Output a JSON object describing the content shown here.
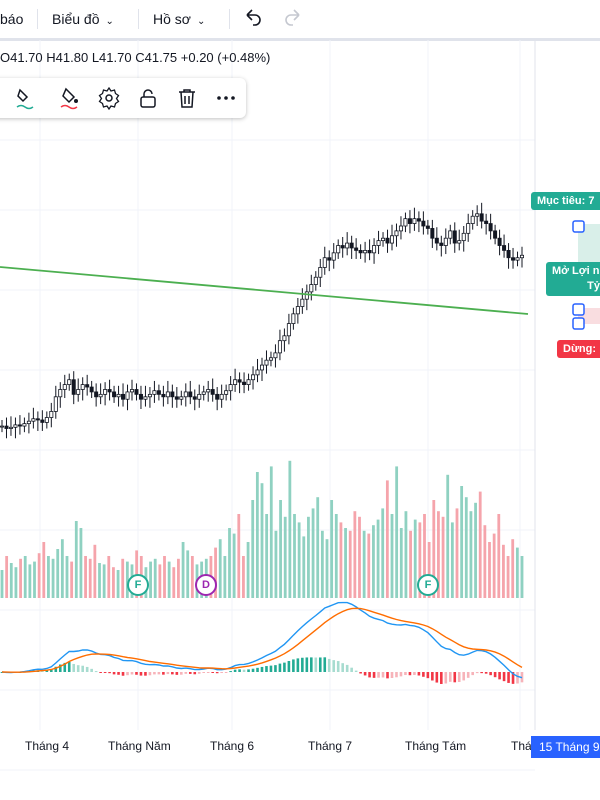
{
  "toolbar": {
    "left_label": "báo",
    "chart_menu": "Biểu đồ",
    "profile_menu": "Hồ sơ",
    "undo_icon": "undo-icon",
    "redo_icon": "redo-icon"
  },
  "ohlc": {
    "open": "O41.70",
    "high": "H41.80",
    "low": "L41.70",
    "close": "C41.75",
    "change": "+0.20 (+0.48%)"
  },
  "drawing_toolbar": {
    "icons": [
      "brush-icon",
      "fill-color-icon",
      "line-color-icon",
      "settings-icon",
      "lock-icon",
      "trash-icon",
      "more-icon"
    ]
  },
  "position_tags": {
    "target": "Mục tiêu: 7",
    "profit_line1": "Mở Lợi n",
    "profit_line2": "Tỷ",
    "stop": "Dừng:"
  },
  "events": [
    {
      "letter": "F",
      "color": "#22ab94"
    },
    {
      "letter": "D",
      "color": "#9c27b0"
    },
    {
      "letter": "F",
      "color": "#22ab94"
    }
  ],
  "date_badge": "15 Tháng 9",
  "colors": {
    "up": "#22ab94",
    "down": "#f23645",
    "trendline": "#4caf50",
    "macd": "#2196f3",
    "signal": "#ff6d00",
    "accent": "#2962ff"
  },
  "chart_data": {
    "type": "candlestick",
    "x_tick_labels": [
      "Tháng 4",
      "Tháng Năm",
      "Tháng 6",
      "Tháng 7",
      "Tháng Tám",
      "Thá"
    ],
    "last_bar": {
      "open": 41.7,
      "high": 41.8,
      "low": 41.7,
      "close": 41.75,
      "change": 0.2,
      "change_pct": 0.48
    },
    "price_shape": [
      0.36,
      0.34,
      0.35,
      0.37,
      0.36,
      0.38,
      0.4,
      0.42,
      0.41,
      0.39,
      0.43,
      0.48,
      0.6,
      0.66,
      0.7,
      0.74,
      0.62,
      0.66,
      0.7,
      0.68,
      0.64,
      0.6,
      0.62,
      0.66,
      0.64,
      0.6,
      0.62,
      0.58,
      0.64,
      0.66,
      0.62,
      0.58,
      0.6,
      0.62,
      0.65,
      0.62,
      0.6,
      0.64,
      0.6,
      0.58,
      0.6,
      0.64,
      0.6,
      0.58,
      0.62,
      0.64,
      0.66,
      0.62,
      0.58,
      0.62,
      0.65,
      0.7,
      0.74,
      0.72,
      0.7,
      0.74,
      0.78,
      0.82,
      0.86,
      0.9,
      0.92,
      0.96,
      1.06,
      1.1,
      1.2,
      1.28,
      1.34,
      1.4,
      1.46,
      1.52,
      1.58,
      1.66,
      1.74,
      1.72,
      1.78,
      1.84,
      1.82,
      1.86,
      1.82,
      1.8,
      1.78,
      1.8,
      1.78,
      1.84,
      1.88,
      1.9,
      1.86,
      1.92,
      1.96,
      2.0,
      2.06,
      2.02,
      2.06,
      2.04,
      2.0,
      1.98,
      1.9,
      1.86,
      1.84,
      1.9,
      1.96,
      1.86,
      1.88,
      1.94,
      2.02,
      2.08,
      2.1,
      2.04,
      2.02,
      1.96,
      1.9,
      1.84,
      1.8,
      1.74,
      1.72,
      1.74,
      1.76
    ],
    "volume_shape": [
      0.2,
      0.3,
      0.25,
      0.22,
      0.28,
      0.3,
      0.24,
      0.26,
      0.32,
      0.4,
      0.3,
      0.28,
      0.35,
      0.42,
      0.3,
      0.26,
      0.55,
      0.5,
      0.3,
      0.28,
      0.38,
      0.25,
      0.24,
      0.3,
      0.22,
      0.2,
      0.28,
      0.26,
      0.24,
      0.34,
      0.3,
      0.22,
      0.26,
      0.28,
      0.24,
      0.3,
      0.26,
      0.22,
      0.28,
      0.4,
      0.34,
      0.3,
      0.24,
      0.26,
      0.28,
      0.3,
      0.36,
      0.42,
      0.3,
      0.5,
      0.46,
      0.6,
      0.3,
      0.4,
      0.7,
      0.9,
      0.82,
      0.6,
      0.94,
      0.48,
      0.7,
      0.58,
      0.98,
      0.6,
      0.54,
      0.44,
      0.58,
      0.64,
      0.72,
      0.48,
      0.42,
      0.7,
      0.6,
      0.54,
      0.5,
      0.48,
      0.62,
      0.58,
      0.48,
      0.46,
      0.52,
      0.56,
      0.64,
      0.84,
      0.6,
      0.94,
      0.5,
      0.62,
      0.48,
      0.56,
      0.54,
      0.6,
      0.4,
      0.7,
      0.62,
      0.58,
      0.88,
      0.54,
      0.64,
      0.8,
      0.72,
      0.62,
      0.68,
      0.76,
      0.52,
      0.4,
      0.46,
      0.6,
      0.38,
      0.3,
      0.42,
      0.36,
      0.3
    ]
  }
}
